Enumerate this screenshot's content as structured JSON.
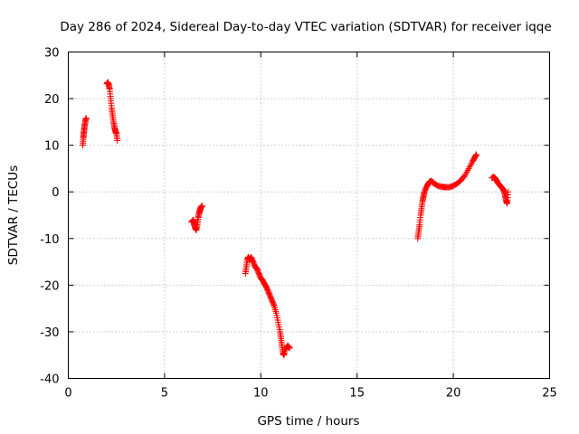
{
  "chart_data": {
    "type": "scatter",
    "title": "Day 286 of 2024, Sidereal Day-to-day VTEC variation (SDTVAR) for receiver iqqe",
    "xlabel": "GPS time / hours",
    "ylabel": "SDTVAR / TECUs",
    "xlim": [
      0,
      25
    ],
    "ylim": [
      -40,
      30
    ],
    "xticks": [
      0,
      5,
      10,
      15,
      20,
      25
    ],
    "xtick_labels": [
      "0",
      "5",
      "10",
      "15",
      "20",
      "25"
    ],
    "yticks": [
      -40,
      -30,
      -20,
      -10,
      0,
      10,
      20,
      30
    ],
    "ytick_labels": [
      "-40",
      "-30",
      "-20",
      "-10",
      "0",
      "10",
      "20",
      "30"
    ],
    "grid": true,
    "marker": "plus",
    "marker_color": "#ff0000",
    "series": [
      {
        "name": "SDTVAR",
        "segments": [
          [
            [
              0.75,
              10.0
            ],
            [
              0.78,
              11.5
            ],
            [
              0.8,
              12.5
            ],
            [
              0.83,
              13.5
            ],
            [
              0.86,
              14.5
            ],
            [
              0.9,
              15.5
            ],
            [
              0.93,
              15.8
            ]
          ],
          [
            [
              2.0,
              23.2
            ],
            [
              2.05,
              23.5
            ],
            [
              2.1,
              23.0
            ],
            [
              2.15,
              22.0
            ],
            [
              2.2,
              20.0
            ],
            [
              2.25,
              18.0
            ],
            [
              2.3,
              16.5
            ],
            [
              2.35,
              15.0
            ],
            [
              2.4,
              13.8
            ],
            [
              2.45,
              13.0
            ],
            [
              2.5,
              12.5
            ],
            [
              2.55,
              11.0
            ]
          ],
          [
            [
              6.4,
              -6.5
            ],
            [
              6.5,
              -6.0
            ],
            [
              6.55,
              -7.0
            ],
            [
              6.6,
              -7.8
            ],
            [
              6.65,
              -8.2
            ],
            [
              6.7,
              -7.0
            ],
            [
              6.75,
              -5.5
            ],
            [
              6.8,
              -4.5
            ],
            [
              6.85,
              -3.8
            ],
            [
              6.9,
              -3.2
            ],
            [
              6.95,
              -3.0
            ]
          ],
          [
            [
              9.2,
              -17.5
            ],
            [
              9.25,
              -16.0
            ],
            [
              9.3,
              -14.5
            ],
            [
              9.35,
              -14.0
            ],
            [
              9.4,
              -14.5
            ],
            [
              9.5,
              -14.0
            ],
            [
              9.6,
              -15.0
            ],
            [
              9.7,
              -16.0
            ],
            [
              9.8,
              -16.5
            ],
            [
              9.9,
              -17.5
            ],
            [
              10.0,
              -18.5
            ],
            [
              10.1,
              -19.0
            ],
            [
              10.2,
              -19.8
            ],
            [
              10.3,
              -20.5
            ],
            [
              10.4,
              -21.5
            ],
            [
              10.5,
              -22.5
            ],
            [
              10.6,
              -23.5
            ],
            [
              10.7,
              -24.5
            ],
            [
              10.8,
              -26.0
            ],
            [
              10.9,
              -28.0
            ],
            [
              11.0,
              -30.0
            ],
            [
              11.05,
              -31.5
            ],
            [
              11.1,
              -33.0
            ],
            [
              11.15,
              -34.5
            ],
            [
              11.2,
              -35.0
            ],
            [
              11.3,
              -33.5
            ],
            [
              11.4,
              -33.0
            ],
            [
              11.5,
              -33.5
            ]
          ],
          [
            [
              18.15,
              -10.0
            ],
            [
              18.2,
              -8.5
            ],
            [
              18.25,
              -7.0
            ],
            [
              18.3,
              -5.0
            ],
            [
              18.35,
              -3.5
            ],
            [
              18.4,
              -2.0
            ],
            [
              18.45,
              -1.0
            ],
            [
              18.5,
              0.0
            ],
            [
              18.6,
              1.0
            ],
            [
              18.7,
              1.8
            ],
            [
              18.8,
              2.3
            ],
            [
              18.9,
              2.2
            ],
            [
              19.0,
              1.8
            ],
            [
              19.2,
              1.3
            ],
            [
              19.4,
              1.1
            ],
            [
              19.6,
              1.0
            ],
            [
              19.8,
              1.0
            ],
            [
              20.0,
              1.3
            ],
            [
              20.2,
              1.8
            ],
            [
              20.4,
              2.5
            ],
            [
              20.6,
              3.5
            ],
            [
              20.8,
              5.0
            ],
            [
              21.0,
              6.5
            ],
            [
              21.1,
              7.3
            ],
            [
              21.2,
              8.0
            ]
          ],
          [
            [
              22.0,
              3.0
            ],
            [
              22.1,
              3.2
            ],
            [
              22.2,
              2.8
            ],
            [
              22.3,
              2.0
            ],
            [
              22.4,
              1.5
            ],
            [
              22.5,
              1.0
            ],
            [
              22.6,
              0.5
            ],
            [
              22.65,
              0.0
            ],
            [
              22.7,
              -1.0
            ],
            [
              22.75,
              -2.0
            ],
            [
              22.8,
              -2.5
            ],
            [
              22.85,
              0.0
            ]
          ]
        ]
      }
    ]
  }
}
